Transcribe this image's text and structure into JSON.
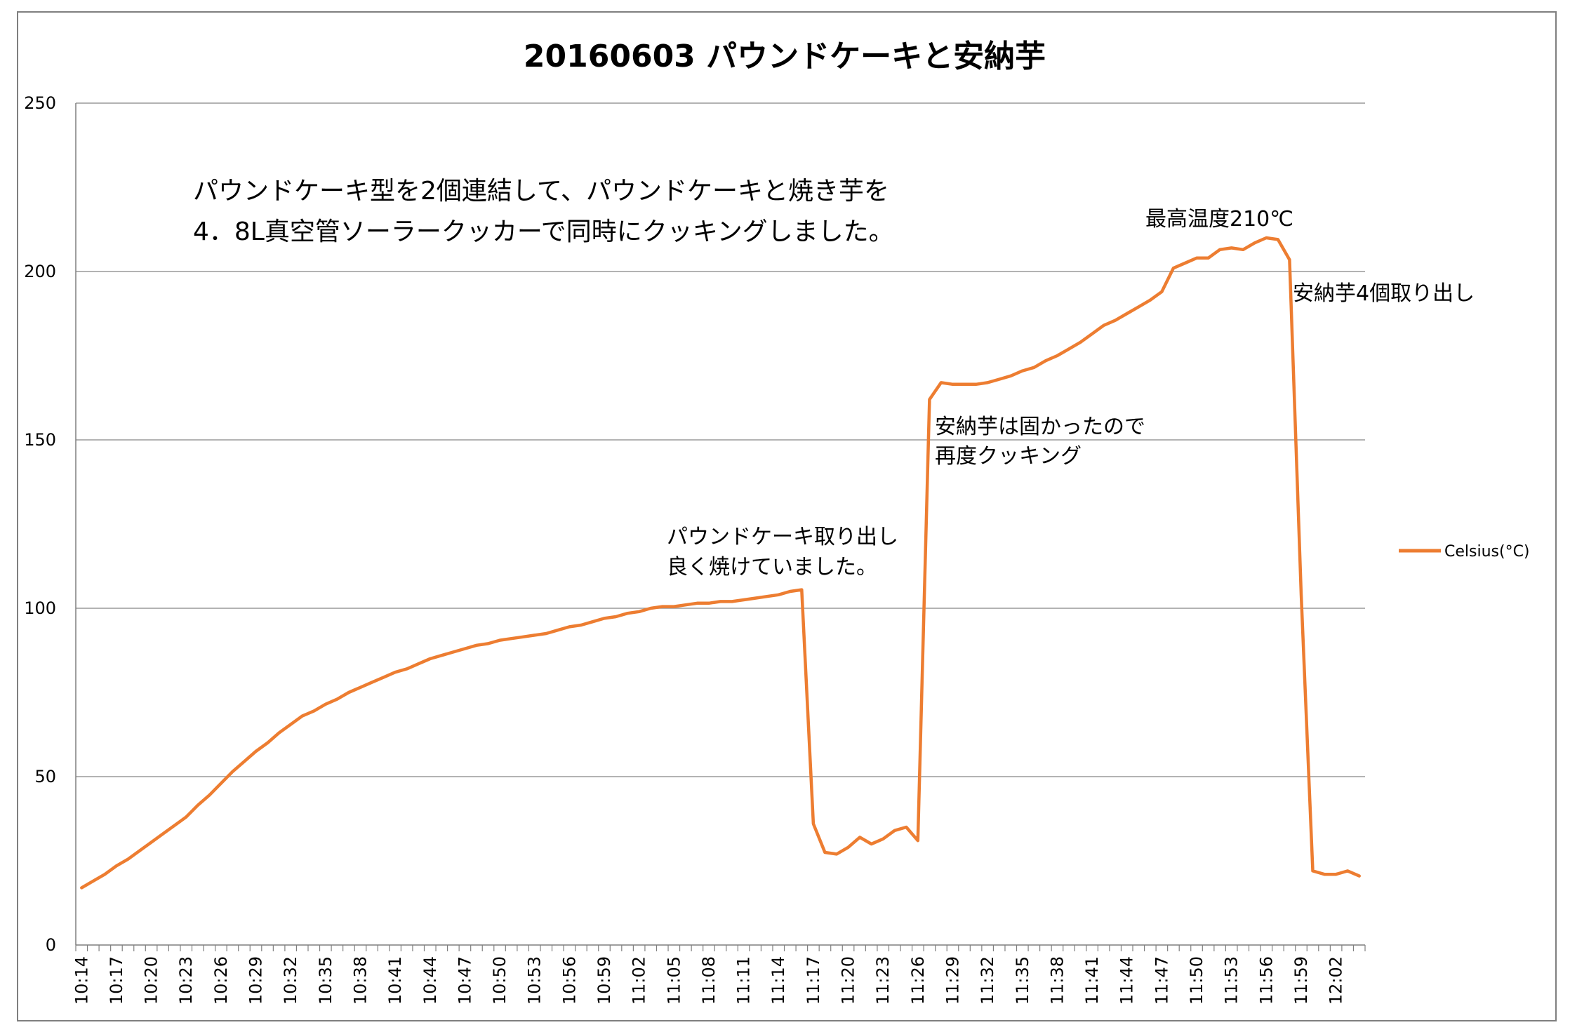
{
  "chart_data": {
    "type": "line",
    "title": "20160603 パウンドケーキと安納芋",
    "xlabel": "",
    "ylabel": "",
    "ylim": [
      0,
      250
    ],
    "yticks": [
      0,
      50,
      100,
      150,
      200,
      250
    ],
    "grid": true,
    "legend_position": "right",
    "x_tick_labels": [
      "10:14",
      "10:17",
      "10:20",
      "10:23",
      "10:26",
      "10:29",
      "10:32",
      "10:35",
      "10:38",
      "10:41",
      "10:44",
      "10:47",
      "10:50",
      "10:53",
      "10:56",
      "10:59",
      "11:02",
      "11:05",
      "11:08",
      "11:11",
      "11:14",
      "11:17",
      "11:20",
      "11:23",
      "11:26",
      "11:29",
      "11:32",
      "11:35",
      "11:38",
      "11:41",
      "11:44",
      "11:47",
      "11:50",
      "11:53",
      "11:56",
      "11:59",
      "12:02"
    ],
    "series": [
      {
        "name": "Celsius(°C)",
        "color": "#ed7d31",
        "interval_minutes": 1,
        "start": "10:14",
        "values": [
          17,
          19,
          21,
          23.5,
          25.5,
          28,
          30.5,
          33,
          35.5,
          38,
          41.5,
          44.5,
          48,
          51.5,
          54.5,
          57.5,
          60,
          63,
          65.5,
          68,
          69.5,
          71.5,
          73,
          75,
          76.5,
          78,
          79.5,
          81,
          82,
          83.5,
          85,
          86,
          87,
          88,
          89,
          89.5,
          90.5,
          91,
          91.5,
          92,
          92.5,
          93.5,
          94.5,
          95,
          96,
          97,
          97.5,
          98.5,
          99,
          100,
          100.5,
          100.5,
          101,
          101.5,
          101.5,
          102,
          102,
          102.5,
          103,
          103.5,
          104,
          105,
          105.5,
          36,
          27.5,
          27,
          29,
          32,
          30,
          31.5,
          34,
          35,
          31,
          162,
          167,
          166.5,
          166.5,
          166.5,
          167,
          168,
          169,
          170.5,
          171.5,
          173.5,
          175,
          177,
          179,
          181.5,
          184,
          185.5,
          187.5,
          189.5,
          191.5,
          194,
          201,
          202.5,
          204,
          204,
          206.5,
          207,
          206.5,
          208.5,
          210,
          209.5,
          203.5,
          104,
          22,
          21,
          21,
          22,
          20.5
        ]
      }
    ],
    "annotations": [
      {
        "lines": [
          "パウンドケーキ型を2個連結して、パウンドケーキと焼き芋を",
          "4．8L真空管ソーラークッカーで同時にクッキングしました。"
        ]
      },
      {
        "lines": [
          "最高温度210℃"
        ]
      },
      {
        "lines": [
          "安納芋4個取り出し"
        ]
      },
      {
        "lines": [
          "安納芋は固かったので",
          "再度クッキング"
        ]
      },
      {
        "lines": [
          "パウンドケーキ取り出し",
          "良く焼けていました。"
        ]
      }
    ]
  }
}
